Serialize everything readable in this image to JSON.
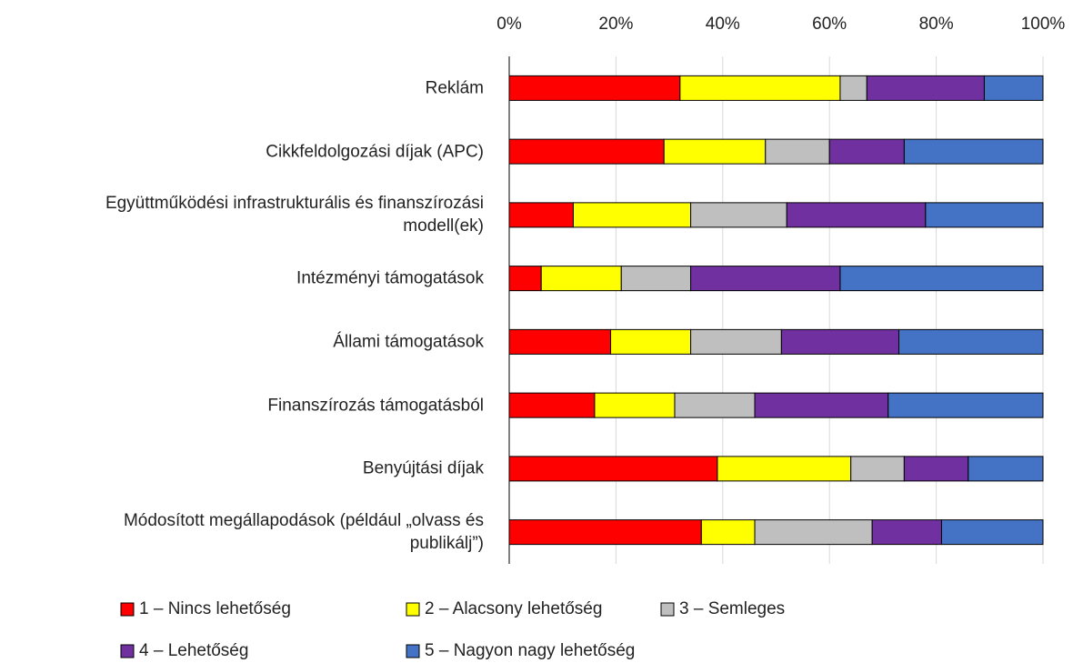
{
  "chart_data": {
    "type": "stacked_bar_horizontal",
    "categories": [
      "Reklám",
      "Cikkfeldolgozási díjak (APC)",
      "Együttműködési infrastrukturális és finanszírozási\nmodell(ek)",
      "Intézményi támogatások",
      "Állami támogatások",
      "Finanszírozás támogatásból",
      "Benyújtási díjak",
      "Módosított megállapodások (például „olvass és\npublikálj”)"
    ],
    "series": [
      {
        "name": "1 – Nincs lehetőség",
        "color": "#ff0000",
        "values": [
          32,
          29,
          12,
          6,
          19,
          16,
          39,
          36
        ]
      },
      {
        "name": "2 – Alacsony lehetőség",
        "color": "#ffff00",
        "values": [
          30,
          19,
          22,
          15,
          15,
          15,
          25,
          10
        ]
      },
      {
        "name": "3 – Semleges",
        "color": "#bfbfbf",
        "values": [
          5,
          12,
          18,
          13,
          17,
          15,
          10,
          22
        ]
      },
      {
        "name": "4 – Lehetőség",
        "color": "#7030a0",
        "values": [
          22,
          14,
          26,
          28,
          22,
          25,
          12,
          13
        ]
      },
      {
        "name": "5 – Nagyon nagy lehetőség",
        "color": "#4472c4",
        "values": [
          11,
          26,
          22,
          38,
          27,
          29,
          14,
          19
        ]
      }
    ],
    "xlim": [
      0,
      100
    ],
    "xticks": [
      {
        "value": 0,
        "label": "0%"
      },
      {
        "value": 20,
        "label": "20%"
      },
      {
        "value": 40,
        "label": "40%"
      },
      {
        "value": 60,
        "label": "60%"
      },
      {
        "value": 80,
        "label": "80%"
      },
      {
        "value": 100,
        "label": "100%"
      }
    ],
    "grid": true,
    "legend": "bottom"
  }
}
